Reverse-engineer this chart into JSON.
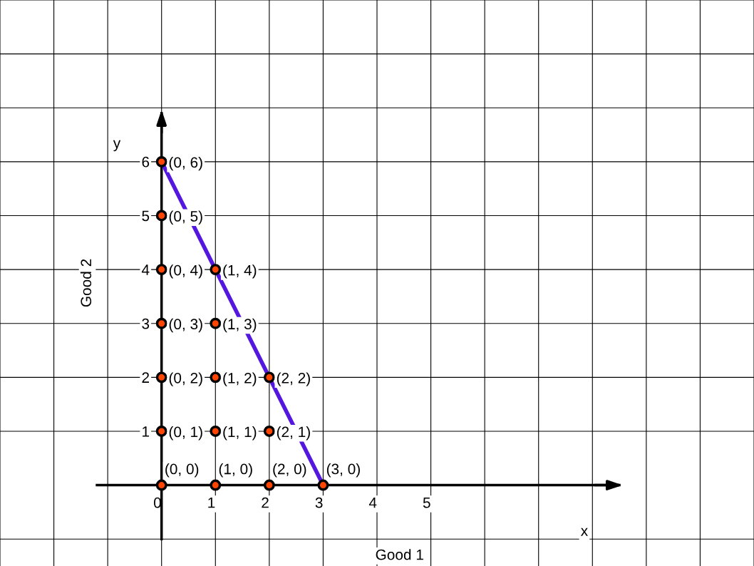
{
  "chart_data": {
    "type": "scatter",
    "xlabel": "Good 1",
    "ylabel": "Good 2",
    "annotations": [
      "x",
      "y"
    ],
    "xlim": [
      -3,
      11
    ],
    "ylim": [
      -1.5,
      9
    ],
    "xticks": [
      {
        "value": -3,
        "label": null
      },
      {
        "value": -2,
        "label": null
      },
      {
        "value": -1,
        "label": null
      },
      0,
      1,
      2,
      3,
      4,
      5,
      {
        "value": 6,
        "label": null
      },
      {
        "value": 7,
        "label": null
      },
      {
        "value": 8,
        "label": null
      },
      {
        "value": 9,
        "label": null
      },
      {
        "value": 10,
        "label": null
      },
      {
        "value": 11,
        "label": null
      }
    ],
    "yticks": [
      {
        "value": -1,
        "label": null
      },
      1,
      2,
      3,
      4,
      5,
      6,
      {
        "value": 7,
        "label": null
      },
      {
        "value": 8,
        "label": null
      },
      {
        "value": 9,
        "label": null
      }
    ],
    "grid": true,
    "series": [
      {
        "type": "line",
        "color": "#5317e0",
        "x": [
          0,
          3
        ],
        "values": [
          6,
          0
        ],
        "marker": "none"
      },
      {
        "color": "#ff4500",
        "marker": "circle",
        "x": [
          0,
          0,
          0,
          0,
          0,
          0,
          0,
          1,
          1,
          1,
          1,
          1,
          2,
          2,
          2,
          3
        ],
        "values": [
          0,
          1,
          2,
          3,
          4,
          5,
          6,
          0,
          1,
          2,
          3,
          4,
          0,
          1,
          2,
          0
        ],
        "value_labels": [
          "(0, 0)",
          "(0, 1)",
          "(0, 2)",
          "(0, 3)",
          "(0, 4)",
          "(0, 5)",
          "(0, 6)",
          "(1, 0)",
          "(1, 1)",
          "(1, 2)",
          "(1, 3)",
          "(1, 4)",
          "(2, 0)",
          "(2, 1)",
          "(2, 2)",
          "(3, 0)"
        ]
      }
    ]
  }
}
